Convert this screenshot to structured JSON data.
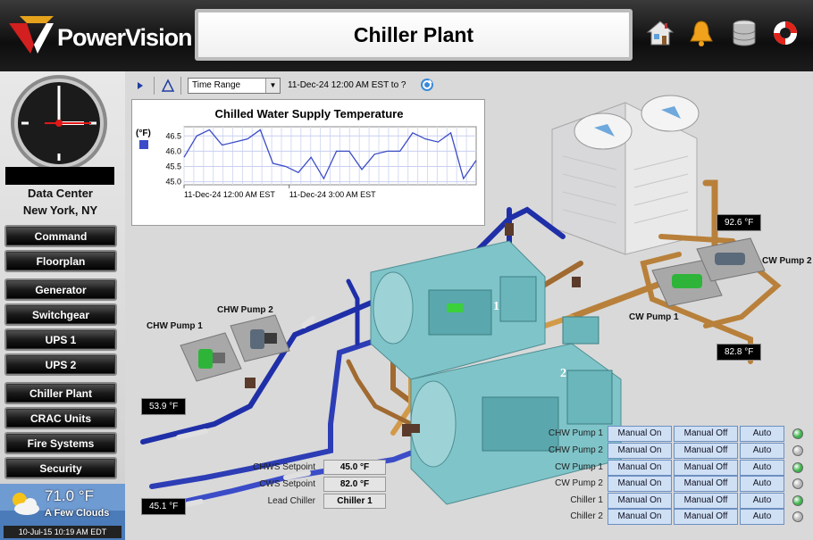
{
  "header": {
    "brand": "PowerVision",
    "title": "Chiller Plant"
  },
  "sidebar": {
    "location_line1": "Data Center",
    "location_line2": "New York, NY",
    "nav": [
      "Command",
      "Floorplan",
      "Generator",
      "Switchgear",
      "UPS 1",
      "UPS 2",
      "Chiller Plant",
      "CRAC Units",
      "Fire Systems",
      "Security"
    ],
    "weather": {
      "temperature": "71.0 °F",
      "condition": "A Few Clouds",
      "timestamp": "10-Jul-15 10:19 AM EDT"
    }
  },
  "toolbar": {
    "time_range_select": "Time Range",
    "range_text": "11-Dec-24 12:00 AM EST  to  ?"
  },
  "chart_data": {
    "type": "line",
    "title": "Chilled Water Supply Temperature",
    "ylabel": "(°F)",
    "ylim": [
      44.9,
      46.8
    ],
    "yticks": [
      "46.5",
      "46.0",
      "45.5",
      "45.0"
    ],
    "xtick_labels": [
      "11-Dec-24 12:00 AM EST",
      "11-Dec-24 3:00 AM EST"
    ],
    "series": [
      {
        "color": "#3b4cc8",
        "values": [
          45.8,
          46.5,
          46.7,
          46.2,
          46.3,
          46.4,
          46.7,
          45.6,
          45.5,
          45.3,
          45.8,
          45.1,
          46.0,
          46.0,
          45.4,
          45.9,
          46.0,
          46.0,
          46.6,
          46.4,
          46.3,
          46.6,
          45.1,
          45.7
        ]
      }
    ]
  },
  "readings": {
    "cw_supply": "92.6 °F",
    "cw_return": "82.8 °F",
    "chw_return": "53.9 °F",
    "chw_supply": "45.1 °F"
  },
  "equipment_labels": {
    "chw_pump_1": "CHW Pump 1",
    "chw_pump_2": "CHW Pump 2",
    "cw_pump_1": "CW Pump 1",
    "cw_pump_2": "CW Pump 2",
    "chiller_1": "1",
    "chiller_2": "2"
  },
  "setpoints": {
    "chws_label": "CHWS Setpoint",
    "chws_value": "45.0 °F",
    "cws_label": "CWS Setpoint",
    "cws_value": "82.0 °F",
    "lead_label": "Lead Chiller",
    "lead_value": "Chiller 1"
  },
  "controls": [
    {
      "name": "CHW Pump 1",
      "on": "Manual On",
      "off": "Manual Off",
      "auto": "Auto",
      "status_color": "#3bb54a"
    },
    {
      "name": "CHW Pump 2",
      "on": "Manual On",
      "off": "Manual Off",
      "auto": "Auto",
      "status_color": "#b5b5b5"
    },
    {
      "name": "CW Pump 1",
      "on": "Manual On",
      "off": "Manual Off",
      "auto": "Auto",
      "status_color": "#3bb54a"
    },
    {
      "name": "CW Pump 2",
      "on": "Manual On",
      "off": "Manual Off",
      "auto": "Auto",
      "status_color": "#b5b5b5"
    },
    {
      "name": "Chiller 1",
      "on": "Manual On",
      "off": "Manual Off",
      "auto": "Auto",
      "status_color": "#3bb54a"
    },
    {
      "name": "Chiller 2",
      "on": "Manual On",
      "off": "Manual Off",
      "auto": "Auto",
      "status_color": "#b5b5b5"
    }
  ],
  "colors": {
    "chw_pipe": "#1f2fa8",
    "cw_pipe": "#b8803a",
    "chiller_body": "#7fc4c9",
    "status_on": "#3bb54a",
    "status_off": "#b5b5b5"
  }
}
